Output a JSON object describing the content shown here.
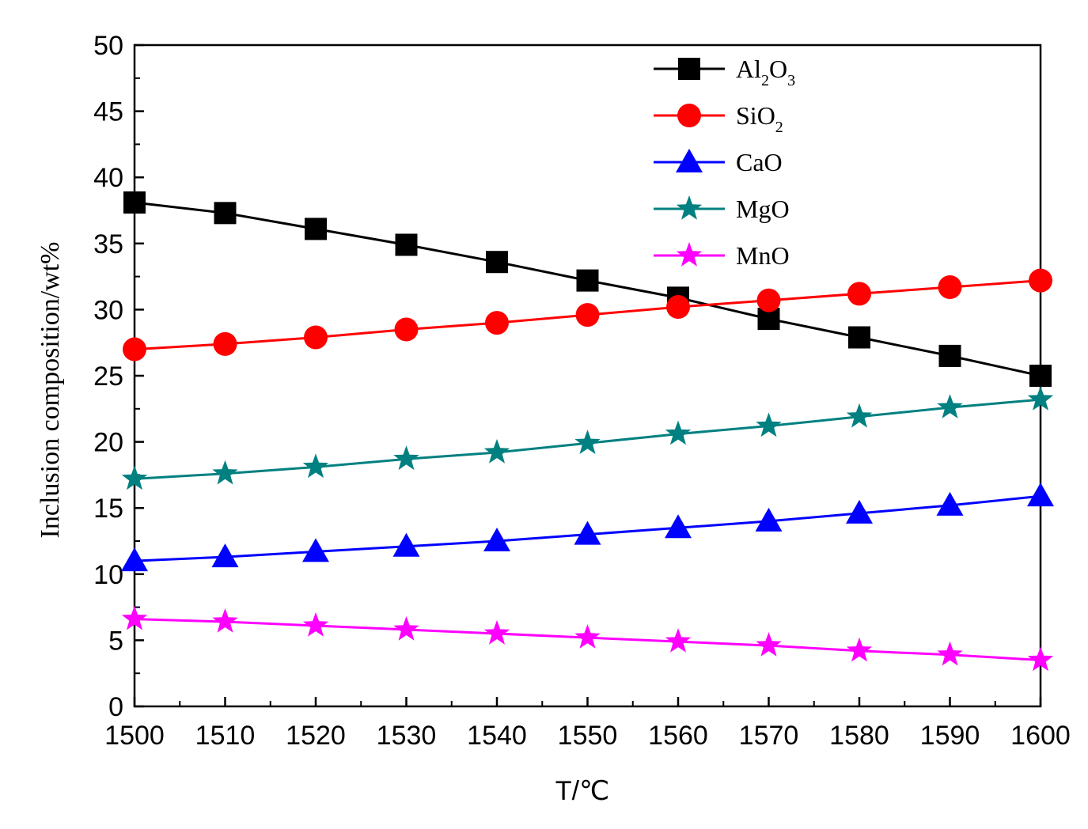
{
  "chart_data": {
    "type": "line",
    "title": "",
    "xlabel": "T/℃",
    "ylabel": "Inclusion composition/wt%",
    "x": [
      1500,
      1510,
      1520,
      1530,
      1540,
      1550,
      1560,
      1570,
      1580,
      1590,
      1600
    ],
    "xlim": [
      1500,
      1600
    ],
    "ylim": [
      0,
      50
    ],
    "xticks": [
      1500,
      1510,
      1520,
      1530,
      1540,
      1550,
      1560,
      1570,
      1580,
      1590,
      1600
    ],
    "yticks": [
      0,
      5,
      10,
      15,
      20,
      25,
      30,
      35,
      40,
      45,
      50
    ],
    "legend_position": "top-right",
    "grid": false,
    "series": [
      {
        "name": "Al2O3",
        "label_main": "Al",
        "label_sub1": "2",
        "label_mid": "O",
        "label_sub2": "3",
        "marker": "square",
        "color": "#000000",
        "values": [
          38.1,
          37.3,
          36.1,
          34.9,
          33.6,
          32.2,
          30.9,
          29.3,
          27.9,
          26.5,
          25.0
        ]
      },
      {
        "name": "SiO2",
        "label_main": "SiO",
        "label_sub1": "2",
        "marker": "circle",
        "color": "#ff0000",
        "values": [
          27.0,
          27.4,
          27.9,
          28.5,
          29.0,
          29.6,
          30.2,
          30.7,
          31.2,
          31.7,
          32.2
        ]
      },
      {
        "name": "CaO",
        "label_main": "CaO",
        "marker": "triangle",
        "color": "#0000ff",
        "values": [
          11.0,
          11.3,
          11.7,
          12.1,
          12.5,
          13.0,
          13.5,
          14.0,
          14.6,
          15.2,
          15.9
        ]
      },
      {
        "name": "MgO",
        "label_main": "MgO",
        "marker": "star",
        "color": "#008080",
        "values": [
          17.2,
          17.6,
          18.1,
          18.7,
          19.2,
          19.9,
          20.6,
          21.2,
          21.9,
          22.6,
          23.2
        ]
      },
      {
        "name": "MnO",
        "label_main": "MnO",
        "marker": "star",
        "color": "#ff00ff",
        "values": [
          6.6,
          6.4,
          6.1,
          5.8,
          5.5,
          5.2,
          4.9,
          4.6,
          4.2,
          3.9,
          3.5
        ]
      }
    ]
  }
}
